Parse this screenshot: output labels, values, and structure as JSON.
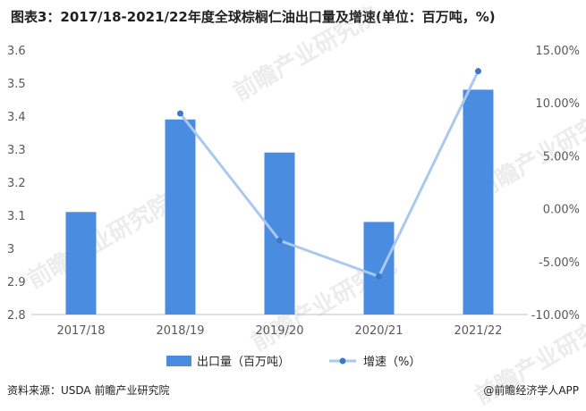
{
  "title": "图表3：2017/18-2021/22年度全球棕榈仁油出口量及增速(单位：百万吨，%)",
  "source": "资料来源：USDA 前瞻产业研究院",
  "brand": "@前瞻经济学人APP",
  "watermark": "前瞻产业研究院",
  "colors": {
    "bar": "#4a8ce0",
    "line": "#a9c9f0",
    "marker": "#3a78c9",
    "axis": "#bfbfbf",
    "text": "#595959"
  },
  "chart_data": {
    "type": "bar+line",
    "categories": [
      "2017/18",
      "2018/19",
      "2019/20",
      "2020/21",
      "2021/22"
    ],
    "series": [
      {
        "name": "出口量（百万吨）",
        "type": "bar",
        "axis": "left",
        "values": [
          3.11,
          3.39,
          3.29,
          3.08,
          3.48
        ]
      },
      {
        "name": "增速（%）",
        "type": "line",
        "axis": "right",
        "values": [
          null,
          9.0,
          -3.0,
          -6.4,
          13.0
        ]
      }
    ],
    "y_left": {
      "min": 2.8,
      "max": 3.6,
      "step": 0.1,
      "ticks": [
        "2.8",
        "2.9",
        "3",
        "3.1",
        "3.2",
        "3.3",
        "3.4",
        "3.5",
        "3.6"
      ]
    },
    "y_right": {
      "min": -10,
      "max": 15,
      "step": 5,
      "ticks": [
        "-10.00%",
        "-5.00%",
        "0.00%",
        "5.00%",
        "10.00%",
        "15.00%"
      ]
    },
    "legend_position": "bottom",
    "grid": false
  }
}
